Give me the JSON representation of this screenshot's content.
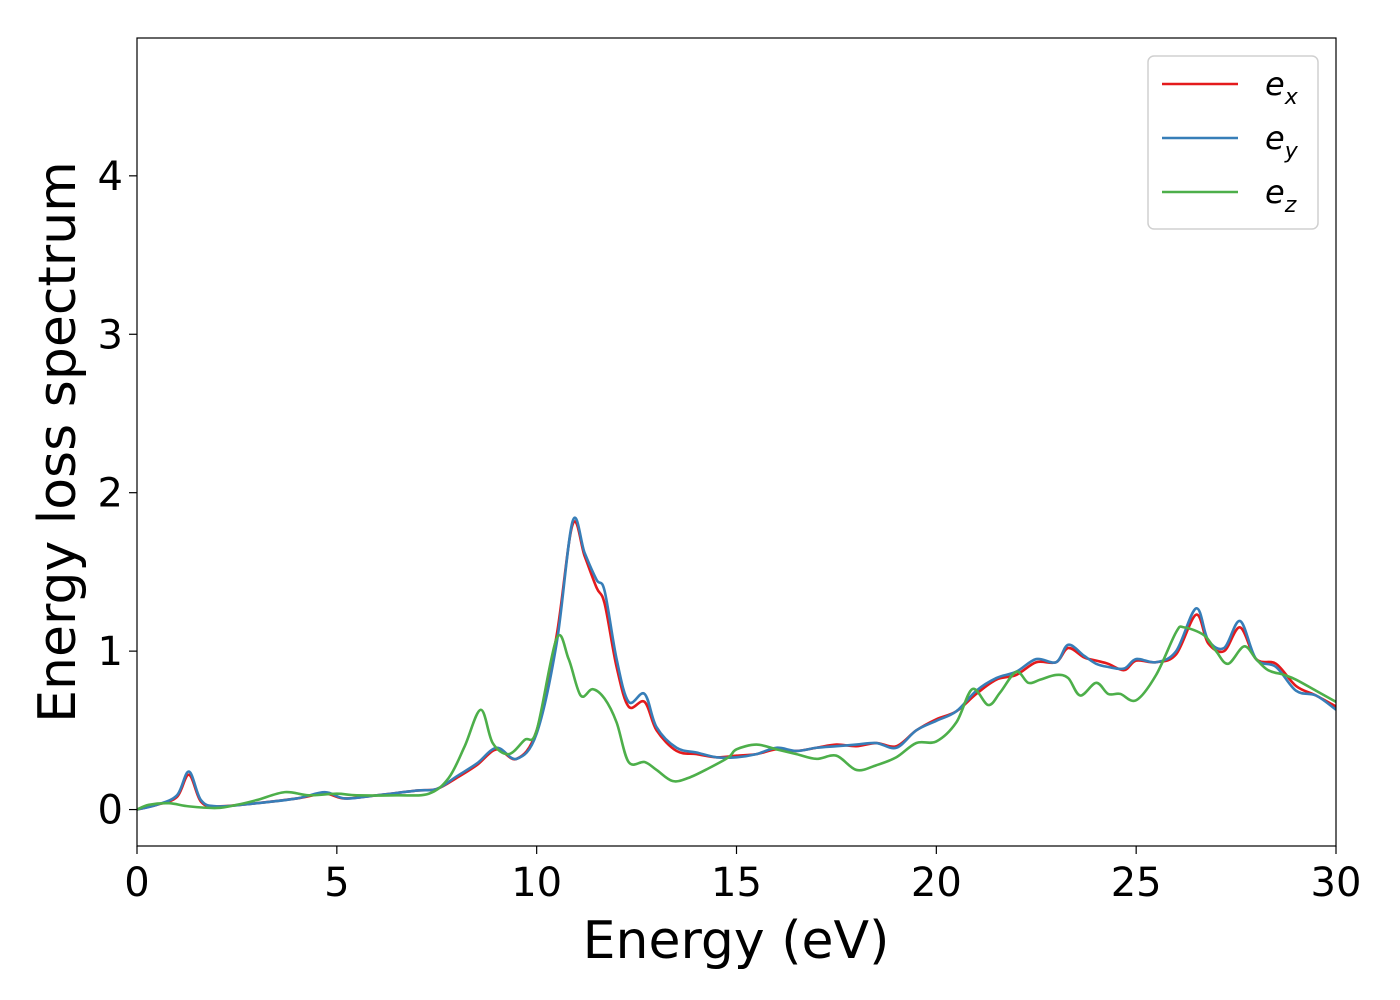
{
  "chart_data": {
    "type": "line",
    "title": "",
    "xlabel": "Energy (eV)",
    "ylabel": "Energy loss spectrum",
    "xlim": [
      0,
      30
    ],
    "ylim": [
      -0.23,
      4.87
    ],
    "xticks": [
      0,
      5,
      10,
      15,
      20,
      25,
      30
    ],
    "yticks": [
      0,
      1,
      2,
      3,
      4
    ],
    "grid": false,
    "legend": "top-right",
    "series": [
      {
        "name": "e_x",
        "label_base": "e",
        "label_sub": "x",
        "color": "#e41a1c",
        "x": [
          0,
          0.5,
          1.0,
          1.3,
          1.6,
          2.0,
          3.0,
          4.0,
          4.7,
          5.2,
          6.0,
          7.0,
          7.5,
          8.0,
          8.5,
          9.0,
          9.5,
          10.0,
          10.5,
          10.9,
          11.2,
          11.5,
          11.7,
          12.0,
          12.3,
          12.7,
          13.0,
          13.5,
          14.0,
          14.5,
          15.0,
          15.5,
          16.0,
          16.5,
          17.0,
          17.5,
          18.0,
          18.5,
          19.0,
          19.5,
          20.0,
          20.5,
          21.0,
          21.5,
          22.0,
          22.5,
          23.0,
          23.3,
          23.7,
          24.0,
          24.3,
          24.7,
          25.0,
          25.5,
          26.0,
          26.5,
          26.8,
          27.2,
          27.6,
          28.0,
          28.5,
          29.0,
          29.5,
          30.0
        ],
        "y": [
          0.0,
          0.03,
          0.08,
          0.22,
          0.05,
          0.02,
          0.04,
          0.07,
          0.1,
          0.07,
          0.09,
          0.12,
          0.13,
          0.2,
          0.28,
          0.38,
          0.32,
          0.5,
          1.1,
          1.8,
          1.6,
          1.4,
          1.3,
          0.9,
          0.65,
          0.68,
          0.5,
          0.37,
          0.35,
          0.33,
          0.34,
          0.35,
          0.38,
          0.37,
          0.39,
          0.41,
          0.4,
          0.42,
          0.4,
          0.5,
          0.57,
          0.62,
          0.73,
          0.82,
          0.85,
          0.93,
          0.93,
          1.02,
          0.96,
          0.94,
          0.92,
          0.88,
          0.94,
          0.93,
          0.98,
          1.23,
          1.05,
          1.0,
          1.15,
          0.95,
          0.92,
          0.78,
          0.72,
          0.65
        ]
      },
      {
        "name": "e_y",
        "label_base": "e",
        "label_sub": "y",
        "color": "#377eb8",
        "x": [
          0,
          0.5,
          1.0,
          1.3,
          1.6,
          2.0,
          3.0,
          4.0,
          4.7,
          5.2,
          6.0,
          7.0,
          7.5,
          8.0,
          8.5,
          9.0,
          9.5,
          10.0,
          10.5,
          10.9,
          11.2,
          11.5,
          11.7,
          12.0,
          12.3,
          12.7,
          13.0,
          13.5,
          14.0,
          14.5,
          15.0,
          15.5,
          16.0,
          16.5,
          17.0,
          17.5,
          18.0,
          18.5,
          19.0,
          19.5,
          20.0,
          20.5,
          21.0,
          21.5,
          22.0,
          22.5,
          23.0,
          23.3,
          23.7,
          24.0,
          24.3,
          24.7,
          25.0,
          25.5,
          26.0,
          26.5,
          26.8,
          27.2,
          27.6,
          28.0,
          28.5,
          29.0,
          29.5,
          30.0
        ],
        "y": [
          0.0,
          0.03,
          0.09,
          0.24,
          0.06,
          0.02,
          0.04,
          0.07,
          0.11,
          0.07,
          0.09,
          0.12,
          0.13,
          0.21,
          0.29,
          0.39,
          0.32,
          0.48,
          1.05,
          1.82,
          1.62,
          1.45,
          1.38,
          0.95,
          0.68,
          0.73,
          0.52,
          0.39,
          0.36,
          0.33,
          0.33,
          0.35,
          0.39,
          0.37,
          0.39,
          0.4,
          0.41,
          0.42,
          0.39,
          0.5,
          0.56,
          0.62,
          0.75,
          0.83,
          0.87,
          0.95,
          0.93,
          1.04,
          0.97,
          0.92,
          0.9,
          0.89,
          0.95,
          0.93,
          1.0,
          1.27,
          1.07,
          1.02,
          1.19,
          0.95,
          0.9,
          0.75,
          0.72,
          0.63
        ]
      },
      {
        "name": "e_z",
        "label_base": "e",
        "label_sub": "z",
        "color": "#4daf4a",
        "x": [
          0,
          0.3,
          0.8,
          1.3,
          2.0,
          2.5,
          3.0,
          3.7,
          4.3,
          5.0,
          5.5,
          6.5,
          7.3,
          7.8,
          8.2,
          8.6,
          8.9,
          9.3,
          9.7,
          10.0,
          10.5,
          10.8,
          11.1,
          11.4,
          11.7,
          12.0,
          12.3,
          12.7,
          13.0,
          13.4,
          13.8,
          14.3,
          14.8,
          15.0,
          15.5,
          16.0,
          16.5,
          17.0,
          17.5,
          18.0,
          18.5,
          19.0,
          19.5,
          20.0,
          20.5,
          20.9,
          21.3,
          21.6,
          22.0,
          22.3,
          22.6,
          23.0,
          23.3,
          23.6,
          24.0,
          24.3,
          24.6,
          25.0,
          25.5,
          26.0,
          26.2,
          26.7,
          27.0,
          27.3,
          27.7,
          28.0,
          28.3,
          28.7,
          29.0,
          29.5,
          30.0
        ],
        "y": [
          0.0,
          0.03,
          0.04,
          0.02,
          0.01,
          0.03,
          0.06,
          0.11,
          0.09,
          0.1,
          0.09,
          0.09,
          0.1,
          0.2,
          0.4,
          0.63,
          0.42,
          0.35,
          0.44,
          0.5,
          1.08,
          0.95,
          0.72,
          0.76,
          0.7,
          0.55,
          0.3,
          0.3,
          0.25,
          0.18,
          0.2,
          0.26,
          0.33,
          0.38,
          0.41,
          0.38,
          0.35,
          0.32,
          0.34,
          0.25,
          0.28,
          0.33,
          0.42,
          0.43,
          0.55,
          0.76,
          0.66,
          0.74,
          0.87,
          0.8,
          0.82,
          0.85,
          0.83,
          0.72,
          0.8,
          0.73,
          0.73,
          0.69,
          0.85,
          1.12,
          1.15,
          1.1,
          1.0,
          0.92,
          1.03,
          0.95,
          0.88,
          0.85,
          0.82,
          0.75,
          0.68
        ]
      }
    ]
  }
}
